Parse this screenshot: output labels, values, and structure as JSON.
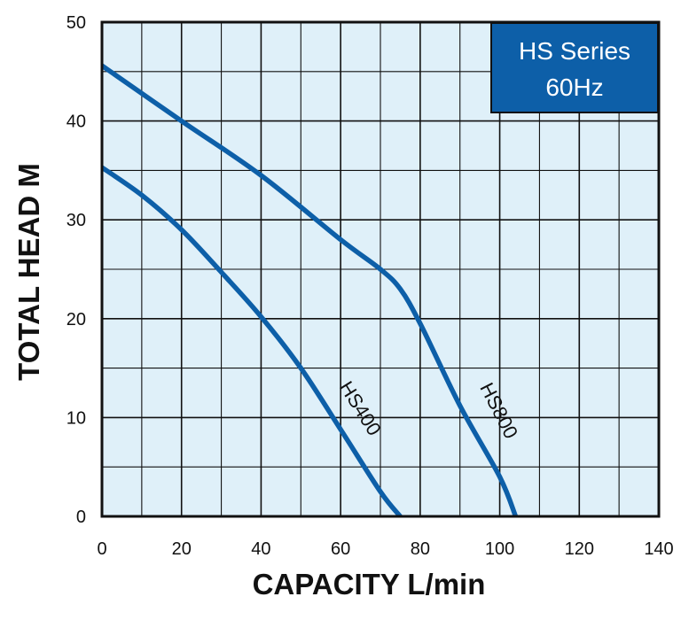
{
  "chart_data": {
    "type": "line",
    "title": "HS Series",
    "subtitle": "60Hz",
    "xlabel": "CAPACITY L/min",
    "ylabel": "TOTAL HEAD M",
    "xlim": [
      0,
      140
    ],
    "ylim": [
      0,
      50
    ],
    "x_ticks": [
      "0",
      "20",
      "40",
      "60",
      "80",
      "100",
      "120",
      "140"
    ],
    "y_ticks": [
      "0",
      "10",
      "20",
      "30",
      "40",
      "50"
    ],
    "x_minor_step": 10,
    "y_minor_step": 5,
    "grid": true,
    "series": [
      {
        "name": "HS400",
        "x": [
          0,
          10,
          20,
          30,
          40,
          50,
          60,
          70,
          75
        ],
        "y": [
          35.3,
          32.5,
          29,
          24.7,
          20.2,
          15,
          8.8,
          2.5,
          0
        ]
      },
      {
        "name": "HS800",
        "x": [
          0,
          20,
          40,
          60,
          70,
          75,
          80,
          90,
          100,
          104
        ],
        "y": [
          45.6,
          40,
          34.5,
          28,
          25,
          23,
          19.5,
          11.2,
          4,
          0
        ]
      }
    ],
    "colors": {
      "line": "#0d5fa8",
      "plot_bg": "#dff0f9",
      "box_bg": "#0d5fa8"
    }
  }
}
